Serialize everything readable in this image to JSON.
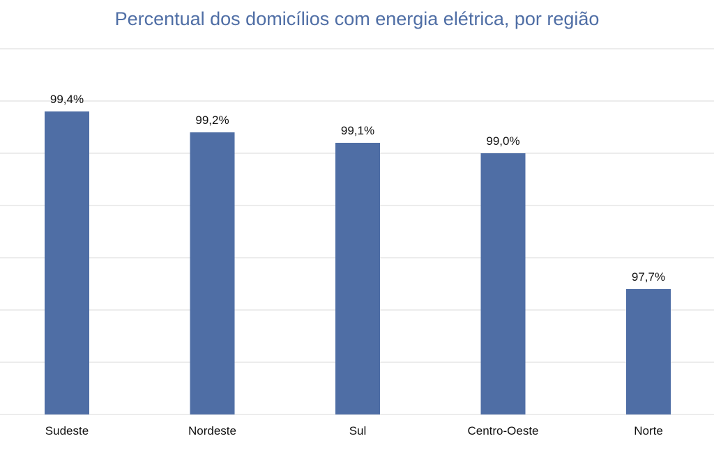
{
  "chart_data": {
    "type": "bar",
    "title": "Percentual dos domicílios com energia elétrica, por região",
    "xlabel": "",
    "ylabel": "",
    "categories": [
      "Sudeste",
      "Nordeste",
      "Sul",
      "Centro-Oeste",
      "Norte"
    ],
    "values": [
      99.4,
      99.2,
      99.1,
      99.0,
      97.7
    ],
    "value_labels": [
      "99,4%",
      "99,2%",
      "99,1%",
      "99,0%",
      "97,7%"
    ],
    "ylim": [
      96.5,
      100.0
    ],
    "grid": true,
    "legend": "none",
    "colors": {
      "bar": "#4f6ea5",
      "title": "#4f6ea5",
      "grid": "#d9d9d9",
      "text": "#111111"
    }
  }
}
